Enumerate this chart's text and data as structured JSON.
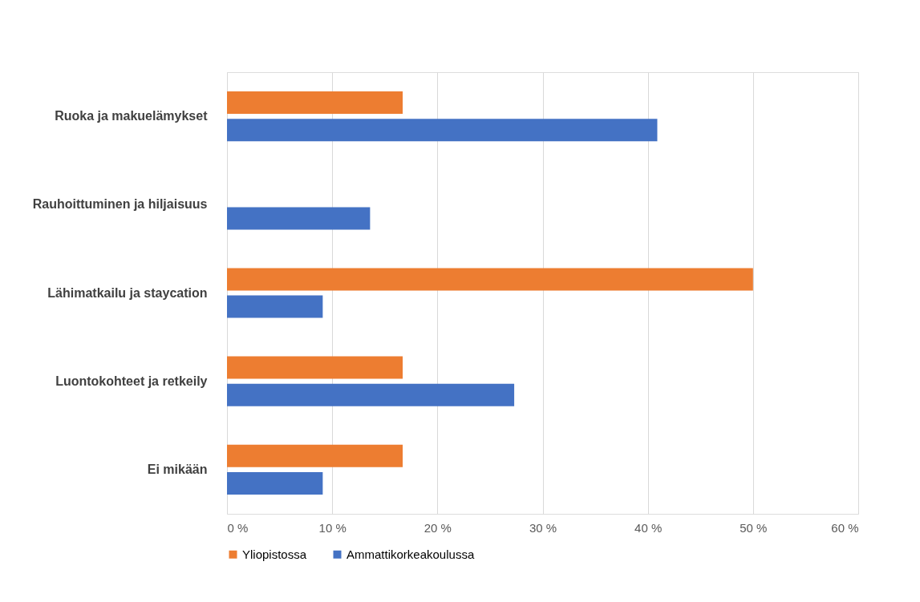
{
  "chart_data": {
    "type": "bar",
    "orientation": "horizontal",
    "categories": [
      "Ruoka ja makuelämykset",
      "Rauhoittuminen ja hiljaisuus",
      "Lähimatkailu ja staycation",
      "Luontokohteet ja retkeily",
      "Ei mikään"
    ],
    "series": [
      {
        "name": "Yliopistossa",
        "color": "#ed7d31",
        "values": [
          16.7,
          0,
          50,
          16.7,
          16.7
        ]
      },
      {
        "name": "Ammattikorkeakoulussa",
        "color": "#4472c4",
        "values": [
          40.9,
          13.6,
          9.1,
          27.3,
          9.1
        ]
      }
    ],
    "xlim": [
      0,
      60
    ],
    "xticks": [
      {
        "value": 0,
        "label": "0 %"
      },
      {
        "value": 10,
        "label": "10 %"
      },
      {
        "value": 20,
        "label": "20 %"
      },
      {
        "value": 30,
        "label": "30 %"
      },
      {
        "value": 40,
        "label": "40 %"
      },
      {
        "value": 50,
        "label": "50 %"
      },
      {
        "value": 60,
        "label": "60 %"
      }
    ],
    "grid": "x",
    "legend": "bottom"
  }
}
